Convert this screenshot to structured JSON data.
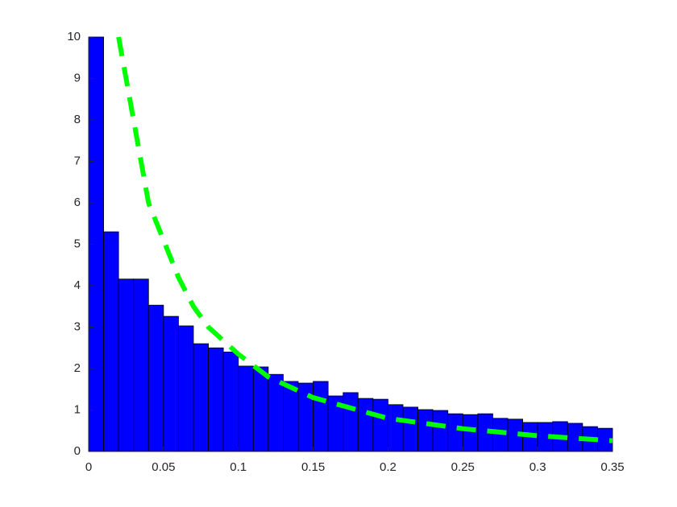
{
  "chart_data": {
    "type": "histogram",
    "bins": [
      0,
      0.01,
      0.02,
      0.03,
      0.04,
      0.05,
      0.06,
      0.07,
      0.08,
      0.09,
      0.1,
      0.11,
      0.12,
      0.13,
      0.14,
      0.15,
      0.16,
      0.17,
      0.18,
      0.19,
      0.2,
      0.21,
      0.22,
      0.23,
      0.24,
      0.25,
      0.26,
      0.27,
      0.28,
      0.29,
      0.3,
      0.31,
      0.32,
      0.33,
      0.34,
      0.35
    ],
    "values": [
      10,
      5.3,
      4.16,
      4.16,
      3.53,
      3.26,
      3.03,
      2.6,
      2.5,
      2.4,
      2.06,
      2.04,
      1.86,
      1.69,
      1.65,
      1.69,
      1.34,
      1.42,
      1.28,
      1.26,
      1.13,
      1.07,
      1.01,
      0.99,
      0.91,
      0.89,
      0.91,
      0.8,
      0.78,
      0.7,
      0.7,
      0.72,
      0.68,
      0.6,
      0.56
    ],
    "color": "#0000ff",
    "overlay": {
      "type": "line",
      "color": "#00ff00",
      "dashed": true,
      "x": [
        0.02,
        0.03,
        0.04,
        0.05,
        0.06,
        0.07,
        0.08,
        0.1,
        0.12,
        0.15,
        0.2,
        0.25,
        0.3,
        0.35
      ],
      "values": [
        10,
        8.0,
        6.0,
        5.1,
        4.2,
        3.5,
        3.0,
        2.35,
        1.8,
        1.3,
        0.8,
        0.55,
        0.38,
        0.26
      ]
    },
    "xlim": [
      0,
      0.35
    ],
    "xticks": [
      0,
      0.05,
      0.1,
      0.15,
      0.2,
      0.25,
      0.3,
      0.35
    ],
    "ylim": [
      0,
      10
    ],
    "yticks": [
      0,
      1,
      2,
      3,
      4,
      5,
      6,
      7,
      8,
      9,
      10
    ],
    "grid": false
  }
}
